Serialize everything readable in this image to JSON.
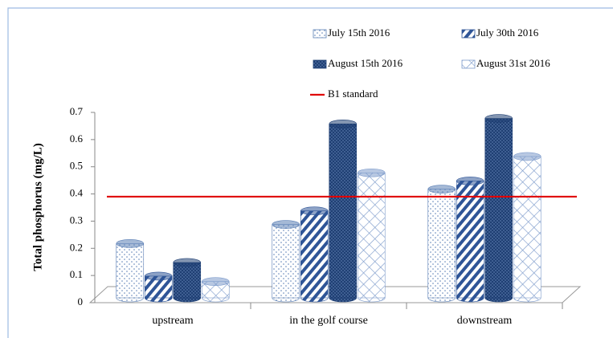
{
  "chart_data": {
    "type": "bar",
    "categories": [
      "upstream",
      "in the golf course",
      "downstream"
    ],
    "series": [
      {
        "name": "July 15th 2016",
        "color": "#5b7fb5",
        "pattern": "dots",
        "values": [
          0.2,
          0.27,
          0.4
        ]
      },
      {
        "name": "July 30th 2016",
        "color": "#2f5597",
        "pattern": "stripes",
        "values": [
          0.08,
          0.32,
          0.43
        ]
      },
      {
        "name": "August 15th 2016",
        "color": "#1f3f73",
        "pattern": "crosshatch",
        "values": [
          0.13,
          0.64,
          0.66
        ]
      },
      {
        "name": "August 31st 2016",
        "color": "#7d9bcb",
        "pattern": "diamonds",
        "values": [
          0.06,
          0.46,
          0.52
        ]
      }
    ],
    "reference": {
      "name": "B1 standard",
      "value": 0.39,
      "color": "#e00000"
    },
    "ylabel": "Total phosphorus (mg/L)",
    "ylim": [
      0,
      0.7
    ],
    "yticks": [
      0,
      0.1,
      0.2,
      0.3,
      0.4,
      0.5,
      0.6,
      0.7
    ]
  }
}
